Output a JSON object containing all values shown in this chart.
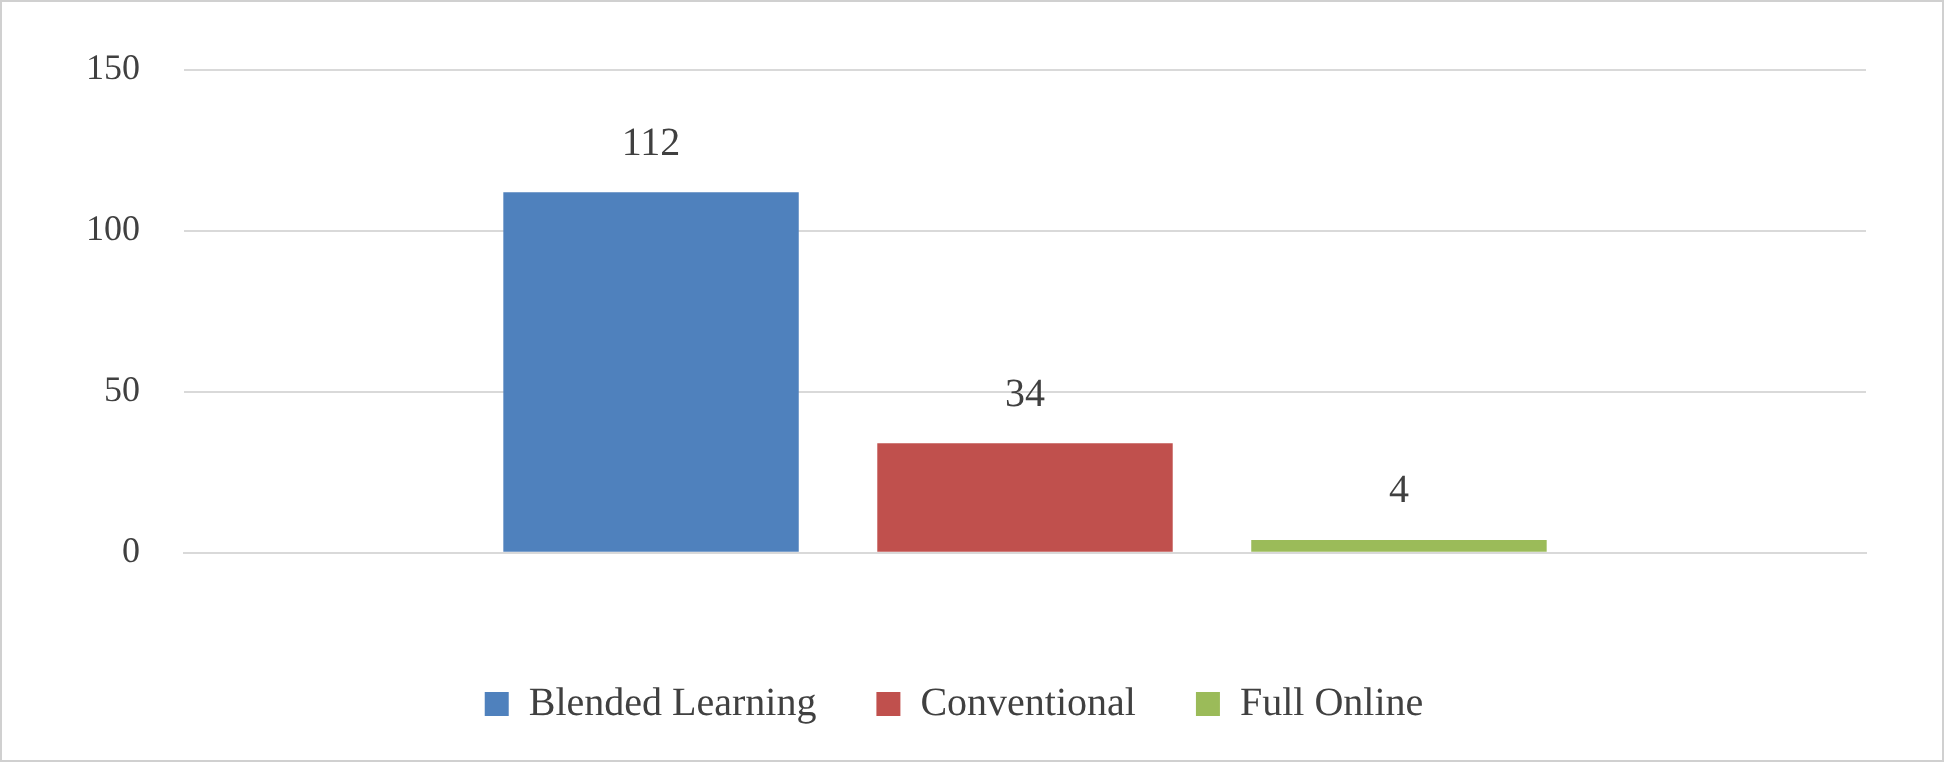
{
  "chart_data": {
    "type": "bar",
    "categories": [
      null
    ],
    "series": [
      {
        "name": "Blended Learning",
        "color": "#4f81bd",
        "values": [
          112
        ]
      },
      {
        "name": "Conventional",
        "color": "#c0504d",
        "values": [
          34
        ]
      },
      {
        "name": "Full Online",
        "color": "#9bbb59",
        "values": [
          4
        ]
      }
    ],
    "ylim": [
      0,
      150
    ],
    "yticks": [
      0,
      50,
      100,
      150
    ],
    "grid": "y",
    "legend": "bottom",
    "data_labels": true
  }
}
